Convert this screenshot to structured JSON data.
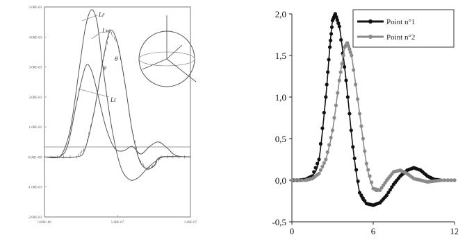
{
  "chart_data": [
    {
      "type": "line",
      "title": "",
      "xlabel": "",
      "ylabel": "",
      "x_ticks": [
        "0.00E+00",
        "5.00E-07",
        "1.00E-07"
      ],
      "y_ticks": [
        "5.00E-03",
        "4.00E-03",
        "3.00E-03",
        "2.00E-03",
        "1.00E-03",
        "0.00E+00",
        "-1.00E-03",
        "-2.00E-03"
      ],
      "ylim": [
        -2,
        5
      ],
      "xlim": [
        0,
        10
      ],
      "grid": false,
      "series": [
        {
          "name": "Lr",
          "color": "#555555",
          "points": [
            [
              0,
              0
            ],
            [
              0.6,
              0
            ],
            [
              1.2,
              0.1
            ],
            [
              1.8,
              1.0
            ],
            [
              2.4,
              3.0
            ],
            [
              2.8,
              4.3
            ],
            [
              3.2,
              4.9
            ],
            [
              3.6,
              4.5
            ],
            [
              4.0,
              3.0
            ],
            [
              4.6,
              1.0
            ],
            [
              5.2,
              -0.3
            ],
            [
              5.8,
              -0.75
            ],
            [
              6.4,
              -0.7
            ],
            [
              7.0,
              -0.4
            ],
            [
              7.6,
              -0.15
            ],
            [
              8.2,
              0
            ],
            [
              10,
              0
            ]
          ]
        },
        {
          "name": "Lw",
          "color": "#555555",
          "marker": "tick",
          "points": [
            [
              0,
              0
            ],
            [
              2.2,
              0
            ],
            [
              2.8,
              0.3
            ],
            [
              3.4,
              1.5
            ],
            [
              4.0,
              3.2
            ],
            [
              4.5,
              4.2
            ],
            [
              5.0,
              3.8
            ],
            [
              5.5,
              2.5
            ],
            [
              6.0,
              0.9
            ],
            [
              6.5,
              -0.1
            ],
            [
              7.0,
              -0.4
            ],
            [
              7.5,
              -0.3
            ],
            [
              8.0,
              0
            ],
            [
              10,
              0
            ]
          ]
        },
        {
          "name": "Lt",
          "color": "#555555",
          "points": [
            [
              0,
              0
            ],
            [
              1.0,
              0
            ],
            [
              1.6,
              0.4
            ],
            [
              2.2,
              1.8
            ],
            [
              2.8,
              3.0
            ],
            [
              3.2,
              2.9
            ],
            [
              3.6,
              2.2
            ],
            [
              4.2,
              1.0
            ],
            [
              4.8,
              0.3
            ],
            [
              5.4,
              0.2
            ],
            [
              6.0,
              0.35
            ],
            [
              6.6,
              0.1
            ],
            [
              7.2,
              0.35
            ],
            [
              7.8,
              0.5
            ],
            [
              8.4,
              0.3
            ],
            [
              9.0,
              0.05
            ],
            [
              10,
              0
            ]
          ]
        }
      ],
      "annotations": [
        "Lr",
        "Lw",
        "Lt",
        "φ",
        "θ"
      ]
    },
    {
      "type": "line",
      "title": "",
      "xlabel": "",
      "ylabel": "",
      "xlim": [
        0,
        12
      ],
      "ylim": [
        -0.5,
        2.0
      ],
      "x_ticks": [
        0,
        6,
        12
      ],
      "y_ticks": [
        -0.5,
        0.0,
        0.5,
        1.0,
        1.5,
        2.0
      ],
      "x_tick_labels": [
        "0",
        "6",
        "12"
      ],
      "y_tick_labels": [
        "-0,5",
        "0,0",
        "0,5",
        "1,0",
        "1,5",
        "2,0"
      ],
      "grid": false,
      "legend": "top-right",
      "series": [
        {
          "name": "Point n°1",
          "color": "#111111",
          "points": [
            [
              0,
              0
            ],
            [
              0.5,
              0
            ],
            [
              1.0,
              0.01
            ],
            [
              1.5,
              0.05
            ],
            [
              2.0,
              0.25
            ],
            [
              2.5,
              1.0
            ],
            [
              2.8,
              1.6
            ],
            [
              3.0,
              1.92
            ],
            [
              3.2,
              2.0
            ],
            [
              3.5,
              1.85
            ],
            [
              4.0,
              1.2
            ],
            [
              4.5,
              0.4
            ],
            [
              5.0,
              -0.15
            ],
            [
              5.5,
              -0.28
            ],
            [
              6.0,
              -0.3
            ],
            [
              6.5,
              -0.27
            ],
            [
              7.0,
              -0.18
            ],
            [
              7.5,
              -0.05
            ],
            [
              8.0,
              0.05
            ],
            [
              8.5,
              0.12
            ],
            [
              9.0,
              0.15
            ],
            [
              9.5,
              0.12
            ],
            [
              10.0,
              0.05
            ],
            [
              10.5,
              0.01
            ],
            [
              11.0,
              0
            ],
            [
              12.0,
              0
            ]
          ]
        },
        {
          "name": "Point n°2",
          "color": "#8a8a8a",
          "points": [
            [
              0,
              0
            ],
            [
              1.0,
              0
            ],
            [
              1.5,
              0.02
            ],
            [
              2.0,
              0.08
            ],
            [
              2.5,
              0.25
            ],
            [
              3.0,
              0.6
            ],
            [
              3.5,
              1.2
            ],
            [
              3.9,
              1.6
            ],
            [
              4.1,
              1.65
            ],
            [
              4.4,
              1.5
            ],
            [
              5.0,
              0.8
            ],
            [
              5.5,
              0.2
            ],
            [
              6.0,
              -0.1
            ],
            [
              6.5,
              -0.12
            ],
            [
              7.0,
              0.0
            ],
            [
              7.5,
              0.1
            ],
            [
              8.0,
              0.12
            ],
            [
              8.5,
              0.08
            ],
            [
              9.0,
              0.02
            ],
            [
              9.5,
              0
            ],
            [
              10.0,
              -0.02
            ],
            [
              10.5,
              -0.01
            ],
            [
              11.0,
              0
            ],
            [
              12.0,
              0
            ]
          ]
        }
      ]
    }
  ]
}
